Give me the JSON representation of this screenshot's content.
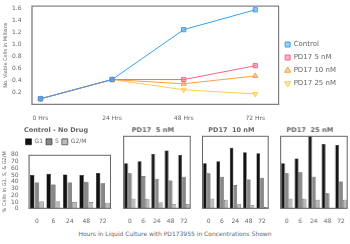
{
  "chart_data": [
    {
      "type": "line",
      "x": [
        0,
        24,
        48,
        72
      ],
      "xlim": [
        -3,
        80
      ],
      "xticks": [
        {
          "value": 0,
          "label": "0 Hrs"
        },
        {
          "value": 24,
          "label": "24 Hrs"
        },
        {
          "value": 48,
          "label": "48 Hrs"
        },
        {
          "value": 72,
          "label": "72 Hrs"
        }
      ],
      "ylim": [
        0,
        1.65
      ],
      "yticks": [
        0.2,
        0.4,
        0.6,
        0.8,
        {
          "value": 1.0,
          "label": "1.0"
        },
        1.2,
        1.4,
        1.6
      ],
      "ylabel": "No. Viable Cells in Millions",
      "legend": "right",
      "grid": false,
      "series": [
        {
          "name": "Control",
          "marker": "square",
          "values": [
            0.1,
            0.42,
            1.25,
            1.58
          ]
        },
        {
          "name": "PD17 5 nM",
          "marker": "square",
          "values": [
            0.1,
            0.42,
            0.42,
            0.65
          ]
        },
        {
          "name": "PD17 10 nM",
          "marker": "triangle_up",
          "values": [
            0.1,
            0.42,
            0.35,
            0.48
          ]
        },
        {
          "name": "PD17 25 nM",
          "marker": "triangle_down",
          "values": [
            0.1,
            0.42,
            0.25,
            0.18
          ]
        }
      ]
    },
    {
      "type": "bar",
      "title": "Control - No Drug",
      "categories": [
        "0",
        "6",
        "24",
        "48",
        "72"
      ],
      "ylim": [
        0,
        80
      ],
      "yticks": [
        0,
        10,
        20,
        30,
        40,
        50,
        60,
        70,
        80
      ],
      "ylabel": "% Cells in G1, S, & G2/M",
      "xlabel": "Hours in Liquid Culture with PD173955 in Concentrations Shown",
      "legend": "top",
      "grid": false,
      "series": [
        {
          "name": "G1",
          "color": "#111111",
          "values": [
            50,
            52,
            51,
            50,
            53
          ]
        },
        {
          "name": "S",
          "color": "#888888",
          "values": [
            39,
            36,
            39,
            40,
            38
          ]
        },
        {
          "name": "G2/M",
          "color": "#bbbbbb",
          "values": [
            11,
            11,
            10,
            10,
            9
          ]
        }
      ]
    },
    {
      "type": "bar",
      "title": "PD17  5 nM",
      "categories": [
        "0",
        "6",
        "24",
        "48",
        "72"
      ],
      "ylim": [
        0,
        80
      ],
      "tick_labels": "x",
      "grid": false,
      "series": [
        {
          "name": "G1",
          "color": "#111111",
          "values": [
            50,
            52,
            60,
            64,
            59
          ]
        },
        {
          "name": "S",
          "color": "#888888",
          "values": [
            39,
            36,
            33,
            31,
            35
          ]
        },
        {
          "name": "G2/M",
          "color": "#bbbbbb",
          "values": [
            11,
            11,
            7,
            5,
            5
          ]
        }
      ]
    },
    {
      "type": "bar",
      "title": "PD17  10 nM",
      "categories": [
        "0",
        "6",
        "24",
        "48",
        "72"
      ],
      "ylim": [
        0,
        80
      ],
      "tick_labels": "x",
      "grid": false,
      "series": [
        {
          "name": "G1",
          "color": "#111111",
          "values": [
            50,
            52,
            67,
            62,
            61
          ]
        },
        {
          "name": "S",
          "color": "#888888",
          "values": [
            39,
            35,
            26,
            32,
            34
          ]
        },
        {
          "name": "G2/M",
          "color": "#bbbbbb",
          "values": [
            11,
            10,
            5,
            4,
            2
          ]
        }
      ]
    },
    {
      "type": "bar",
      "title": "PD17  25 nM",
      "categories": [
        "0",
        "6",
        "24",
        "48",
        "72"
      ],
      "ylim": [
        0,
        80
      ],
      "tick_labels": "x",
      "grid": false,
      "series": [
        {
          "name": "G1",
          "color": "#111111",
          "values": [
            50,
            55,
            80,
            71,
            70
          ]
        },
        {
          "name": "S",
          "color": "#888888",
          "values": [
            39,
            40,
            35,
            17,
            30
          ]
        },
        {
          "name": "G2/M",
          "color": "#bbbbbb",
          "values": [
            11,
            11,
            10,
            1,
            10
          ]
        }
      ]
    }
  ]
}
